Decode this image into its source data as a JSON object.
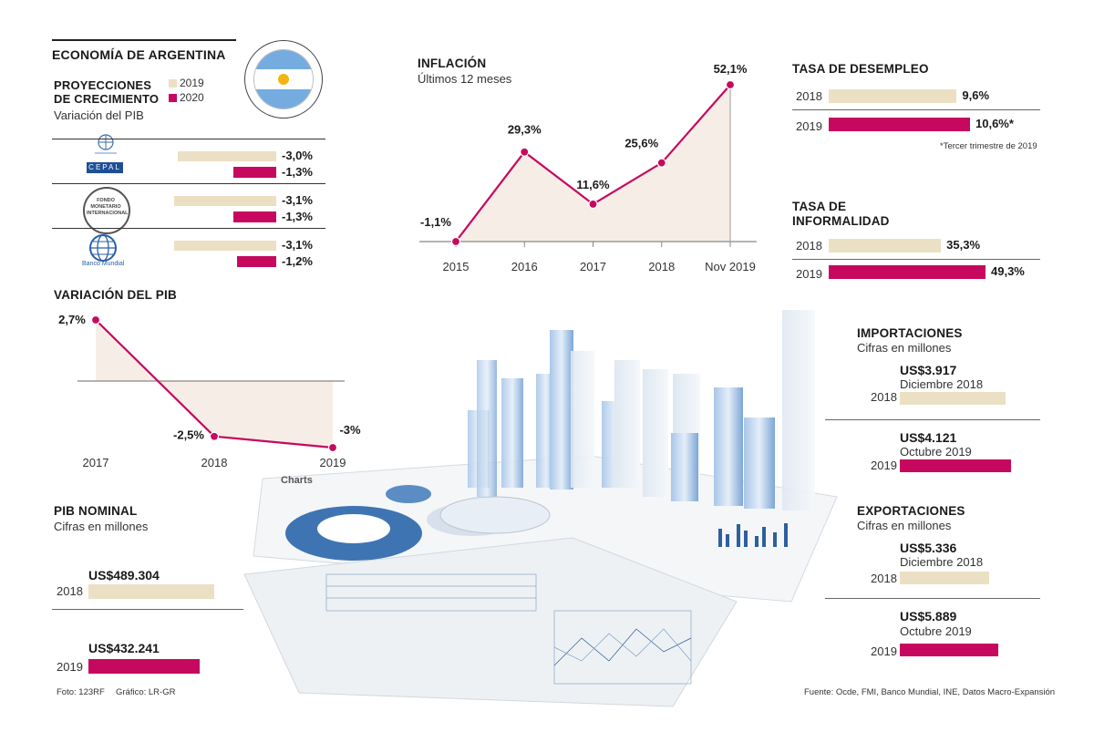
{
  "colors": {
    "y2019": "#ebe0c3",
    "y2020": "#c6085f",
    "area": "#f6eee6",
    "axis": "#888888"
  },
  "header": {
    "title": "ECONOMÍA DE ARGENTINA",
    "flag_icon": "argentina-flag-icon"
  },
  "projections": {
    "title_line1": "PROYECCIONES",
    "title_line2": "DE CRECIMIENTO",
    "subtitle": "Variación del PIB",
    "legend": [
      {
        "label": "2019"
      },
      {
        "label": "2020"
      }
    ],
    "institutions": [
      {
        "name": "CEPAL",
        "logo_caption": "CEPAL",
        "icon": "un-laurel-icon",
        "v2019": -3.0,
        "v2020": -1.3,
        "label2019": "-3,0%",
        "label2020": "-1,3%"
      },
      {
        "name": "FMI",
        "logo_caption": "FONDO MONETARIO INTERNACIONAL",
        "icon": "imf-seal-icon",
        "v2019": -3.1,
        "v2020": -1.3,
        "label2019": "-3,1%",
        "label2020": "-1,3%"
      },
      {
        "name": "Banco Mundial",
        "logo_caption": "Banco Mundial",
        "icon": "world-bank-globe-icon",
        "v2019": -3.1,
        "v2020": -1.2,
        "label2019": "-3,1%",
        "label2020": "-1,2%"
      }
    ]
  },
  "inflation": {
    "title": "INFLACIÓN",
    "subtitle": "Últimos 12 meses"
  },
  "pib_variation": {
    "title": "VARIACIÓN DEL PIB"
  },
  "unemployment": {
    "title": "TASA DE DESEMPLEO",
    "rows": [
      {
        "year": "2018",
        "value": 9.6,
        "label": "9,6%"
      },
      {
        "year": "2019",
        "value": 10.6,
        "label": "10,6%*"
      }
    ],
    "footnote": "*Tercer trimestre de 2019"
  },
  "informality": {
    "title_line1": "TASA DE",
    "title_line2": "INFORMALIDAD",
    "rows": [
      {
        "year": "2018",
        "value": 35.3,
        "label": "35,3%"
      },
      {
        "year": "2019",
        "value": 49.3,
        "label": "49,3%"
      }
    ]
  },
  "pib_nominal": {
    "title": "PIB NOMINAL",
    "subtitle": "Cifras en millones",
    "rows": [
      {
        "year": "2018",
        "value": 489304,
        "label": "US$489.304"
      },
      {
        "year": "2019",
        "value": 432241,
        "label": "US$432.241"
      }
    ]
  },
  "imports": {
    "title": "IMPORTACIONES",
    "subtitle": "Cifras en millones",
    "rows": [
      {
        "year": "2018",
        "period": "Diciembre 2018",
        "value": 3917,
        "label": "US$3.917"
      },
      {
        "year": "2019",
        "period": "Octubre 2019",
        "value": 4121,
        "label": "US$4.121"
      }
    ]
  },
  "exports": {
    "title": "EXPORTACIONES",
    "subtitle": "Cifras en millones",
    "rows": [
      {
        "year": "2018",
        "period": "Diciembre 2018",
        "value": 5336,
        "label": "US$5.336"
      },
      {
        "year": "2019",
        "period": "Octubre 2019",
        "value": 5889,
        "label": "US$5.889"
      }
    ]
  },
  "photo": {
    "description_icon": "charts-photo-illustration",
    "label": "Charts"
  },
  "footer": {
    "photo_credit": "Foto: 123RF",
    "graphic_credit": "Gráfico: LR-GR",
    "source": "Fuente: Ocde, FMI, Banco Mundial, INE, Datos Macro-Expansión"
  },
  "chart_data": [
    {
      "type": "area",
      "title": "INFLACIÓN",
      "subtitle": "Últimos 12 meses",
      "categories": [
        "2015",
        "2016",
        "2017",
        "2018",
        "Nov 2019"
      ],
      "values": [
        -1.1,
        29.3,
        11.6,
        25.6,
        52.1
      ],
      "labels": [
        "-1,1%",
        "29,3%",
        "11,6%",
        "25,6%",
        "52,1%"
      ],
      "ylim": [
        -1.1,
        52.1
      ]
    },
    {
      "type": "area",
      "title": "VARIACIÓN DEL PIB",
      "categories": [
        "2017",
        "2018",
        "2019"
      ],
      "values": [
        2.7,
        -2.5,
        -3.0
      ],
      "labels": [
        "2,7%",
        "-2,5%",
        "-3%"
      ],
      "ylim": [
        -3.0,
        2.7
      ]
    },
    {
      "type": "bar",
      "title": "PROYECCIONES DE CRECIMIENTO",
      "categories": [
        "CEPAL",
        "FMI",
        "Banco Mundial"
      ],
      "series": [
        {
          "name": "2019",
          "values": [
            -3.0,
            -3.1,
            -3.1
          ]
        },
        {
          "name": "2020",
          "values": [
            -1.3,
            -1.3,
            -1.2
          ]
        }
      ]
    }
  ]
}
